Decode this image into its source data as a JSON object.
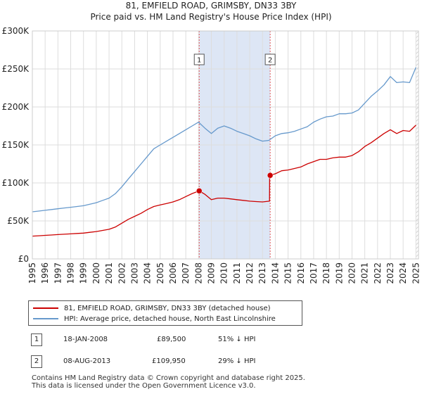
{
  "header": {
    "title_line1": "81, EMFIELD ROAD, GRIMSBY, DN33 3BY",
    "title_line2": "Price paid vs. HM Land Registry's House Price Index (HPI)"
  },
  "colors": {
    "property": "#cc0000",
    "hpi": "#6699cc",
    "shade": "#dde6f5",
    "marker_line": "#e05555",
    "grid": "#dddddd"
  },
  "chart_data": {
    "type": "line",
    "title": "81, EMFIELD ROAD, GRIMSBY, DN33 3BY - Price paid vs. HM Land Registry's House Price Index (HPI)",
    "xlabel": "",
    "ylabel": "",
    "xlim": [
      1995,
      2025.2
    ],
    "ylim": [
      0,
      300000
    ],
    "y_ticks": [
      0,
      50000,
      100000,
      150000,
      200000,
      250000,
      300000
    ],
    "y_tick_labels": [
      "£0",
      "£50K",
      "£100K",
      "£150K",
      "£200K",
      "£250K",
      "£300K"
    ],
    "x_ticks": [
      1995,
      1996,
      1997,
      1998,
      1999,
      2000,
      2001,
      2002,
      2003,
      2004,
      2005,
      2006,
      2007,
      2008,
      2009,
      2010,
      2011,
      2012,
      2013,
      2014,
      2015,
      2016,
      2017,
      2018,
      2019,
      2020,
      2021,
      2022,
      2023,
      2024,
      2025
    ],
    "series": [
      {
        "name": "81, EMFIELD ROAD, GRIMSBY, DN33 3BY (detached house)",
        "color": "#cc0000",
        "x": [
          1995.0,
          1995.5,
          1996.0,
          1996.5,
          1997.0,
          1997.5,
          1998.0,
          1998.5,
          1999.0,
          1999.5,
          2000.0,
          2000.5,
          2001.0,
          2001.5,
          2002.0,
          2002.5,
          2003.0,
          2003.5,
          2004.0,
          2004.5,
          2005.0,
          2005.5,
          2006.0,
          2006.5,
          2007.0,
          2007.5,
          2008.05,
          2008.5,
          2009.0,
          2009.5,
          2010.0,
          2010.5,
          2011.0,
          2011.5,
          2012.0,
          2012.5,
          2013.0,
          2013.55,
          2013.56,
          2014.0,
          2014.5,
          2015.0,
          2015.5,
          2016.0,
          2016.5,
          2017.0,
          2017.5,
          2018.0,
          2018.5,
          2019.0,
          2019.5,
          2020.0,
          2020.5,
          2021.0,
          2021.5,
          2022.0,
          2022.5,
          2023.0,
          2023.5,
          2024.0,
          2024.5,
          2025.0
        ],
        "values": [
          30000,
          30500,
          31000,
          31500,
          32000,
          32500,
          33000,
          33500,
          34000,
          35000,
          36000,
          37500,
          39000,
          42000,
          47000,
          52000,
          56000,
          60000,
          65000,
          69000,
          71000,
          73000,
          75000,
          78000,
          82000,
          86000,
          89500,
          85000,
          78000,
          80000,
          80000,
          79000,
          78000,
          77000,
          76000,
          75500,
          75000,
          76000,
          109950,
          112000,
          116000,
          117000,
          119000,
          121000,
          125000,
          128000,
          131000,
          131000,
          133000,
          134000,
          134000,
          136000,
          141000,
          148000,
          153000,
          159000,
          165000,
          170000,
          165000,
          169000,
          168000,
          176000
        ]
      },
      {
        "name": "HPI: Average price, detached house, North East Lincolnshire",
        "color": "#6699cc",
        "x": [
          1995.0,
          1995.5,
          1996.0,
          1996.5,
          1997.0,
          1997.5,
          1998.0,
          1998.5,
          1999.0,
          1999.5,
          2000.0,
          2000.5,
          2001.0,
          2001.5,
          2002.0,
          2002.5,
          2003.0,
          2003.5,
          2004.0,
          2004.5,
          2005.0,
          2005.5,
          2006.0,
          2006.5,
          2007.0,
          2007.5,
          2008.0,
          2008.5,
          2009.0,
          2009.5,
          2010.0,
          2010.5,
          2011.0,
          2011.5,
          2012.0,
          2012.5,
          2013.0,
          2013.5,
          2014.0,
          2014.5,
          2015.0,
          2015.5,
          2016.0,
          2016.5,
          2017.0,
          2017.5,
          2018.0,
          2018.5,
          2019.0,
          2019.5,
          2020.0,
          2020.5,
          2021.0,
          2021.5,
          2022.0,
          2022.5,
          2023.0,
          2023.5,
          2024.0,
          2024.5,
          2025.0
        ],
        "values": [
          62000,
          63000,
          64000,
          65000,
          66000,
          67000,
          68000,
          69000,
          70000,
          72000,
          74000,
          77000,
          80000,
          86000,
          95000,
          105000,
          115000,
          125000,
          135000,
          145000,
          150000,
          155000,
          160000,
          165000,
          170000,
          175000,
          180000,
          172000,
          165000,
          172000,
          175000,
          172000,
          168000,
          165000,
          162000,
          158000,
          155000,
          156000,
          162000,
          165000,
          166000,
          168000,
          171000,
          174000,
          180000,
          184000,
          187000,
          188000,
          191000,
          191000,
          192000,
          196000,
          205000,
          214000,
          221000,
          229000,
          240000,
          232000,
          233000,
          232000,
          252000
        ]
      }
    ],
    "markers": [
      {
        "label": "1",
        "x": 2008.05,
        "value": 89500
      },
      {
        "label": "2",
        "x": 2013.6,
        "value": 109950
      }
    ],
    "shaded_range": [
      2008.05,
      2013.6
    ],
    "hatched_from": 2025.0
  },
  "legend": {
    "property_label": "81, EMFIELD ROAD, GRIMSBY, DN33 3BY (detached house)",
    "hpi_label": "HPI: Average price, detached house, North East Lincolnshire"
  },
  "transactions": [
    {
      "num": "1",
      "date": "18-JAN-2008",
      "price": "£89,500",
      "hpi_diff": "51% ↓ HPI"
    },
    {
      "num": "2",
      "date": "08-AUG-2013",
      "price": "£109,950",
      "hpi_diff": "29% ↓ HPI"
    }
  ],
  "footer": {
    "line1": "Contains HM Land Registry data © Crown copyright and database right 2025.",
    "line2": "This data is licensed under the Open Government Licence v3.0."
  }
}
